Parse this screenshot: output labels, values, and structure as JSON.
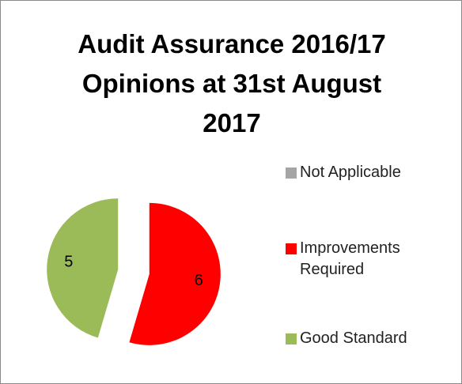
{
  "chart_data": {
    "type": "pie",
    "title": "Audit Assurance 2016/17 Opinions at 31st August 2017",
    "categories": [
      "Not Applicable",
      "Improvements Required",
      "Good Standard"
    ],
    "values": [
      0,
      6,
      5
    ],
    "colors": [
      "#a5a5a5",
      "#ff0000",
      "#9bbb59"
    ],
    "legend": "right"
  }
}
